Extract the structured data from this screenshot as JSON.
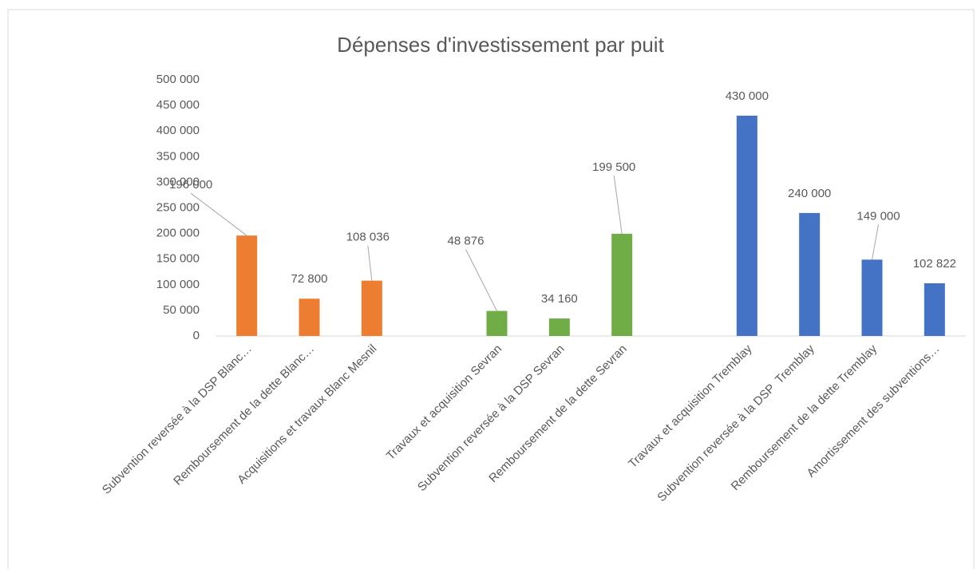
{
  "chart_data": {
    "type": "bar",
    "title": "Dépenses d'investissement par puit",
    "categories": [
      "Subvention reversée à la DSP Blanc…",
      "Remboursement de la dette Blanc…",
      "Acquisitions et travaux Blanc Mesnil",
      null,
      "Travaux et acquisition Sevran",
      "Subvention reversée à la DSP Sevran",
      "Remboursement de la dette Sevran",
      null,
      "Travaux et acquisition Tremblay",
      "Subvention reversée à la DSP  Tremblay",
      "Remboursement de la dette Tremblay",
      "Amortissement des subventions…"
    ],
    "values": [
      196000,
      72800,
      108036,
      null,
      48876,
      34160,
      199500,
      null,
      430000,
      240000,
      149000,
      102822
    ],
    "value_labels": [
      "196 000",
      "72 800",
      "108 036",
      null,
      "48 876",
      "34 160",
      "199 500",
      null,
      "430 000",
      "240 000",
      "149 000",
      "102 822"
    ],
    "colors": [
      "#ED7D31",
      "#ED7D31",
      "#ED7D31",
      null,
      "#70AD47",
      "#70AD47",
      "#70AD47",
      null,
      "#4472C4",
      "#4472C4",
      "#4472C4",
      "#4472C4"
    ],
    "ylim": [
      0,
      500000
    ],
    "yticks": [
      0,
      {
        "value": 50000,
        "label": "50 000"
      },
      {
        "value": 100000,
        "label": "100 000"
      },
      {
        "value": 150000,
        "label": "150 000"
      },
      {
        "value": 200000,
        "label": "200 000"
      },
      {
        "value": 250000,
        "label": "250 000"
      },
      {
        "value": 300000,
        "label": "300 000"
      },
      {
        "value": 350000,
        "label": "350 000"
      },
      {
        "value": 400000,
        "label": "400 000"
      },
      {
        "value": 450000,
        "label": "450 000"
      },
      {
        "value": 500000,
        "label": "500 000"
      }
    ],
    "grid": false
  }
}
